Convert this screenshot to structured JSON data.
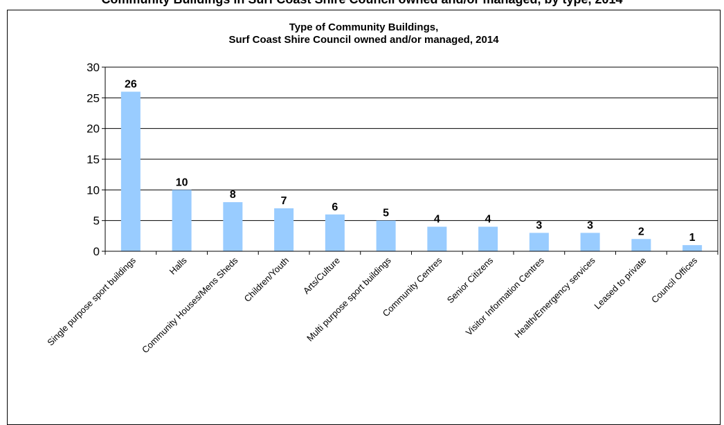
{
  "page": {
    "heading": "Community Buildings in Surf Coast Shire Council owned and/or managed, by type, 2014"
  },
  "chart_data": {
    "type": "bar",
    "title_lines": [
      "Type of Community Buildings,",
      "Surf Coast Shire Council owned and/or managed, 2014"
    ],
    "categories": [
      "Single purpose sport buildings",
      "Halls",
      "Community Houses/Mens Sheds",
      "Children/Youth",
      "Arts/Culture",
      "Multi purpose sport buildings",
      "Community Centres",
      "Senior Citizens",
      "Visitor Information Centres",
      "Health/Emergency services",
      "Leased to private",
      "Council Offices"
    ],
    "values": [
      26,
      10,
      8,
      7,
      6,
      5,
      4,
      4,
      3,
      3,
      2,
      1
    ],
    "ylim": [
      0,
      30
    ],
    "yticks": [
      0,
      5,
      10,
      15,
      20,
      25,
      30
    ],
    "xlabel": "",
    "ylabel": "",
    "grid": true,
    "legend": "none",
    "data_labels": true,
    "bar_color": "#99ccff"
  }
}
